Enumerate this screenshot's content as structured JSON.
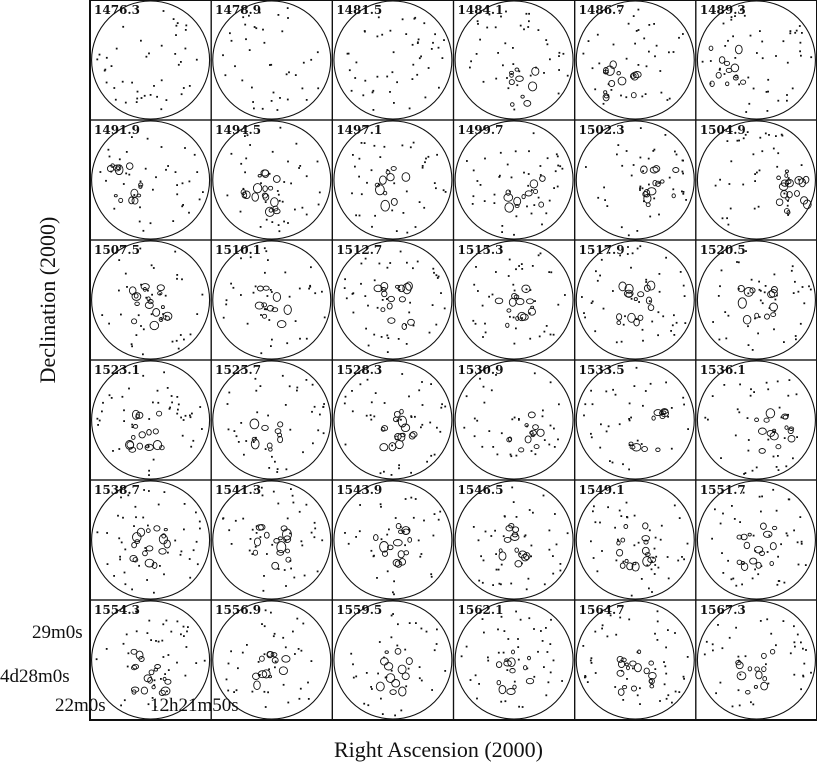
{
  "panel_labels": [
    "1476.3",
    "1478.9",
    "1481.5",
    "1484.1",
    "1486.7",
    "1489.3",
    "1491.9",
    "1494.5",
    "1497.1",
    "1499.7",
    "1502.3",
    "1504.9",
    "1507.5",
    "1510.1",
    "1512.7",
    "1515.3",
    "1517.9",
    "1520.5",
    "1523.1",
    "1525.7",
    "1528.3",
    "1530.9",
    "1533.5",
    "1536.1",
    "1538.7",
    "1541.3",
    "1543.9",
    "1546.5",
    "1549.1",
    "1551.7",
    "1554.3",
    "1556.9",
    "1559.5",
    "1562.1",
    "1564.7",
    "1567.3"
  ],
  "axes": {
    "ylabel": "Declination (2000)",
    "xlabel": "Right Ascension (2000)",
    "yticks": [
      "29m0s",
      "4d28m0s"
    ],
    "xticks": [
      "22m0s",
      "12h21m50s"
    ]
  },
  "grid": {
    "rows": 6,
    "cols": 6
  },
  "colors": {
    "line": "#111111",
    "background": "#ffffff"
  }
}
